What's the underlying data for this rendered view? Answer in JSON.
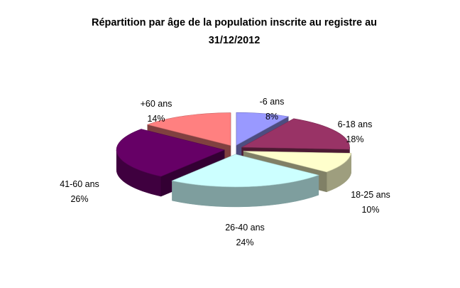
{
  "chart_data": {
    "type": "pie",
    "style": "3d-exploded",
    "title_line1": "Répartition par âge de la population inscrite au registre au",
    "title_line2": "31/12/2012",
    "categories": [
      "-6 ans",
      "6-18 ans",
      "18-25 ans",
      "26-40 ans",
      "41-60 ans",
      "+60 ans"
    ],
    "values": [
      8,
      18,
      10,
      24,
      26,
      14
    ],
    "percent_labels": [
      "8%",
      "18%",
      "10%",
      "24%",
      "26%",
      "14%"
    ],
    "colors": [
      "#9999FF",
      "#993366",
      "#FFFFCC",
      "#CCFFFF",
      "#660066",
      "#FF8080"
    ],
    "legend": "none"
  }
}
